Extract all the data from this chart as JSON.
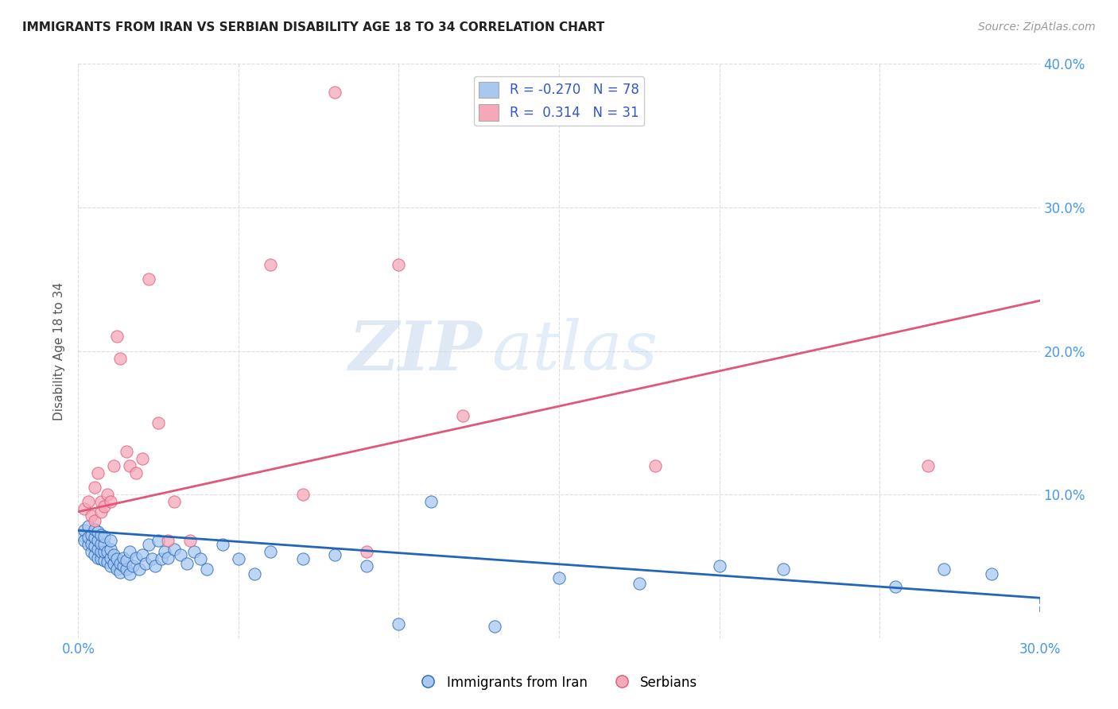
{
  "title": "IMMIGRANTS FROM IRAN VS SERBIAN DISABILITY AGE 18 TO 34 CORRELATION CHART",
  "source": "Source: ZipAtlas.com",
  "ylabel": "Disability Age 18 to 34",
  "xlim": [
    0.0,
    0.3
  ],
  "ylim": [
    0.0,
    0.4
  ],
  "xtick_positions": [
    0.0,
    0.05,
    0.1,
    0.15,
    0.2,
    0.25,
    0.3
  ],
  "xtick_labels": [
    "0.0%",
    "",
    "",
    "",
    "",
    "",
    "30.0%"
  ],
  "yticks": [
    0.0,
    0.1,
    0.2,
    0.3,
    0.4
  ],
  "ytick_labels": [
    "",
    "10.0%",
    "20.0%",
    "30.0%",
    "40.0%"
  ],
  "iran_color": "#a8c8f0",
  "serbian_color": "#f5a8b8",
  "iran_line_color": "#2266bb",
  "serbian_line_color": "#e05878",
  "iran_R": -0.27,
  "iran_N": 78,
  "serbian_R": 0.314,
  "serbian_N": 31,
  "iran_scatter_x": [
    0.001,
    0.002,
    0.002,
    0.003,
    0.003,
    0.003,
    0.004,
    0.004,
    0.004,
    0.005,
    0.005,
    0.005,
    0.005,
    0.006,
    0.006,
    0.006,
    0.006,
    0.007,
    0.007,
    0.007,
    0.007,
    0.008,
    0.008,
    0.008,
    0.008,
    0.009,
    0.009,
    0.01,
    0.01,
    0.01,
    0.01,
    0.011,
    0.011,
    0.012,
    0.012,
    0.013,
    0.013,
    0.014,
    0.014,
    0.015,
    0.015,
    0.016,
    0.016,
    0.017,
    0.018,
    0.019,
    0.02,
    0.021,
    0.022,
    0.023,
    0.024,
    0.025,
    0.026,
    0.027,
    0.028,
    0.03,
    0.032,
    0.034,
    0.036,
    0.038,
    0.04,
    0.045,
    0.05,
    0.055,
    0.06,
    0.07,
    0.08,
    0.09,
    0.1,
    0.11,
    0.13,
    0.15,
    0.175,
    0.2,
    0.22,
    0.255,
    0.27,
    0.285
  ],
  "iran_scatter_y": [
    0.072,
    0.075,
    0.068,
    0.065,
    0.07,
    0.078,
    0.06,
    0.066,
    0.072,
    0.058,
    0.064,
    0.07,
    0.076,
    0.056,
    0.062,
    0.068,
    0.074,
    0.055,
    0.06,
    0.066,
    0.072,
    0.054,
    0.06,
    0.065,
    0.071,
    0.053,
    0.06,
    0.05,
    0.056,
    0.062,
    0.068,
    0.052,
    0.058,
    0.048,
    0.055,
    0.046,
    0.052,
    0.05,
    0.056,
    0.048,
    0.054,
    0.045,
    0.06,
    0.05,
    0.056,
    0.048,
    0.058,
    0.052,
    0.065,
    0.055,
    0.05,
    0.068,
    0.055,
    0.06,
    0.056,
    0.062,
    0.058,
    0.052,
    0.06,
    0.055,
    0.048,
    0.065,
    0.055,
    0.045,
    0.06,
    0.055,
    0.058,
    0.05,
    0.01,
    0.095,
    0.008,
    0.042,
    0.038,
    0.05,
    0.048,
    0.036,
    0.048,
    0.045
  ],
  "serbian_scatter_x": [
    0.002,
    0.003,
    0.004,
    0.005,
    0.005,
    0.006,
    0.007,
    0.007,
    0.008,
    0.009,
    0.01,
    0.011,
    0.012,
    0.013,
    0.015,
    0.016,
    0.018,
    0.02,
    0.022,
    0.025,
    0.028,
    0.03,
    0.035,
    0.06,
    0.07,
    0.08,
    0.09,
    0.1,
    0.12,
    0.18,
    0.265
  ],
  "serbian_scatter_y": [
    0.09,
    0.095,
    0.085,
    0.105,
    0.082,
    0.115,
    0.095,
    0.088,
    0.092,
    0.1,
    0.095,
    0.12,
    0.21,
    0.195,
    0.13,
    0.12,
    0.115,
    0.125,
    0.25,
    0.15,
    0.068,
    0.095,
    0.068,
    0.26,
    0.1,
    0.38,
    0.06,
    0.26,
    0.155,
    0.12,
    0.12
  ],
  "iran_trend_x": [
    0.0,
    0.3
  ],
  "iran_trend_y": [
    0.075,
    0.028
  ],
  "serbian_trend_x": [
    0.0,
    0.3
  ],
  "serbian_trend_y": [
    0.088,
    0.235
  ],
  "watermark_zip": "ZIP",
  "watermark_atlas": "atlas",
  "background_color": "#ffffff",
  "grid_color": "#dddddd",
  "legend_label_color": "#3355cc"
}
